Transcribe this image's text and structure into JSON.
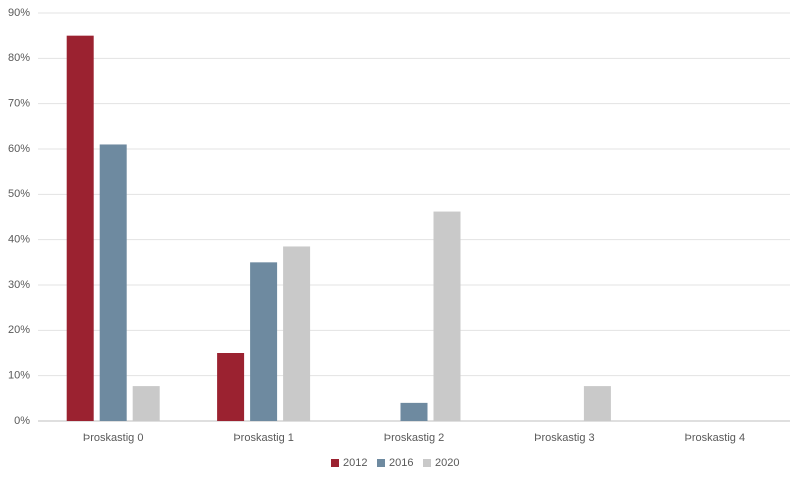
{
  "chart_data": {
    "type": "bar",
    "categories": [
      "Þroskastig 0",
      "Þroskastig 1",
      "Þroskastig 2",
      "Þroskastig 3",
      "Þroskastig 4"
    ],
    "series": [
      {
        "name": "2012",
        "color": "#9b2230",
        "values": [
          85,
          15,
          0,
          0,
          0
        ]
      },
      {
        "name": "2016",
        "color": "#6e8aa0",
        "values": [
          61,
          35,
          4,
          0,
          0
        ]
      },
      {
        "name": "2020",
        "color": "#c9c9c9",
        "values": [
          7.7,
          38.5,
          46.2,
          7.7,
          0
        ]
      }
    ],
    "ylim": [
      0,
      90
    ],
    "yticks": [
      {
        "value": 0,
        "label": "0%"
      },
      {
        "value": 10,
        "label": "10%"
      },
      {
        "value": 20,
        "label": "20%"
      },
      {
        "value": 30,
        "label": "30%"
      },
      {
        "value": 40,
        "label": "40%"
      },
      {
        "value": 50,
        "label": "50%"
      },
      {
        "value": 60,
        "label": "60%"
      },
      {
        "value": 70,
        "label": "70%"
      },
      {
        "value": 80,
        "label": "80%"
      },
      {
        "value": 90,
        "label": "90%"
      }
    ],
    "grid": true,
    "legend": "bottom"
  }
}
